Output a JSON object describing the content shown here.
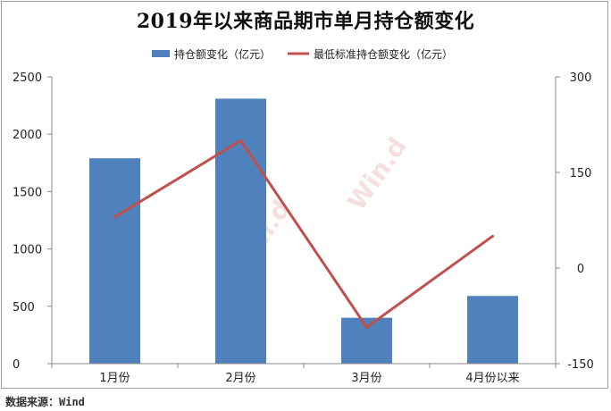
{
  "chart_data": {
    "type": "bar",
    "title": "2019年以来商品期市单月持仓额变化",
    "categories": [
      "1月份",
      "2月份",
      "3月份",
      "4月份以来"
    ],
    "series": [
      {
        "name": "持仓额变化（亿元）",
        "type": "bar",
        "axis": "left",
        "color": "#4f81bd",
        "values": [
          1790,
          2310,
          400,
          590
        ]
      },
      {
        "name": "最低标准持仓额变化（亿元）",
        "type": "line",
        "axis": "right",
        "color": "#c0504d",
        "values": [
          80,
          200,
          -93,
          50
        ]
      }
    ],
    "y_left": {
      "ylim": [
        0,
        2500
      ],
      "ticks": [
        "0",
        "500",
        "1000",
        "1500",
        "2000",
        "2500"
      ]
    },
    "y_right": {
      "ylim": [
        -150,
        300
      ],
      "ticks": [
        "-150",
        "0",
        "150",
        "300"
      ]
    },
    "legend_position": "top",
    "grid": false
  },
  "source_note": "数据来源：Wind",
  "watermarks": [
    "Win.d",
    "Win.d"
  ]
}
